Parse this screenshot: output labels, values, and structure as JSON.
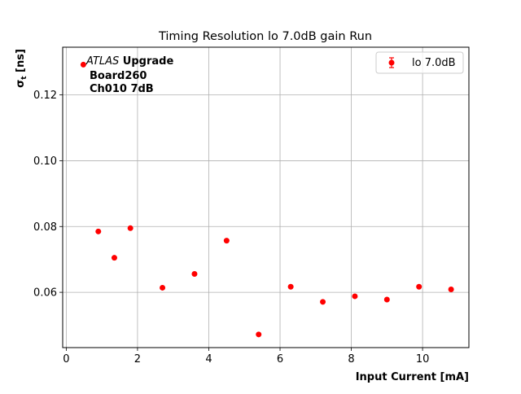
{
  "chart_data": {
    "type": "scatter",
    "title": "Timing Resolution lo 7.0dB gain Run",
    "xlabel": "Input Current [mA]",
    "ylabel_main": "σ",
    "ylabel_sub": "t",
    "ylabel_unit": " [ns]",
    "xlim": [
      -0.1,
      11.3
    ],
    "ylim": [
      0.0432,
      0.1345
    ],
    "xticks": [
      0,
      2,
      4,
      6,
      8,
      10
    ],
    "xtick_labels": [
      "0",
      "2",
      "4",
      "6",
      "8",
      "10"
    ],
    "yticks": [
      0.06,
      0.08,
      0.1,
      0.12
    ],
    "ytick_labels": [
      "0.06",
      "0.08",
      "0.10",
      "0.12"
    ],
    "grid": true,
    "legend_position": "top-right",
    "annotation": {
      "atlas": "ATLAS",
      "upgrade": " Upgrade",
      "line2": "Board260",
      "line3": "Ch010 7dB"
    },
    "series": [
      {
        "name": "lo 7.0dB",
        "color": "#ff0000",
        "marker": "circle",
        "x": [
          0.48,
          0.9,
          1.35,
          1.8,
          2.7,
          3.6,
          4.5,
          5.4,
          6.3,
          7.2,
          8.1,
          9.0,
          9.9,
          10.8
        ],
        "y": [
          0.1292,
          0.0785,
          0.0705,
          0.0795,
          0.0614,
          0.0656,
          0.0757,
          0.0472,
          0.0617,
          0.0571,
          0.0588,
          0.0578,
          0.0617,
          0.0609
        ]
      }
    ]
  }
}
